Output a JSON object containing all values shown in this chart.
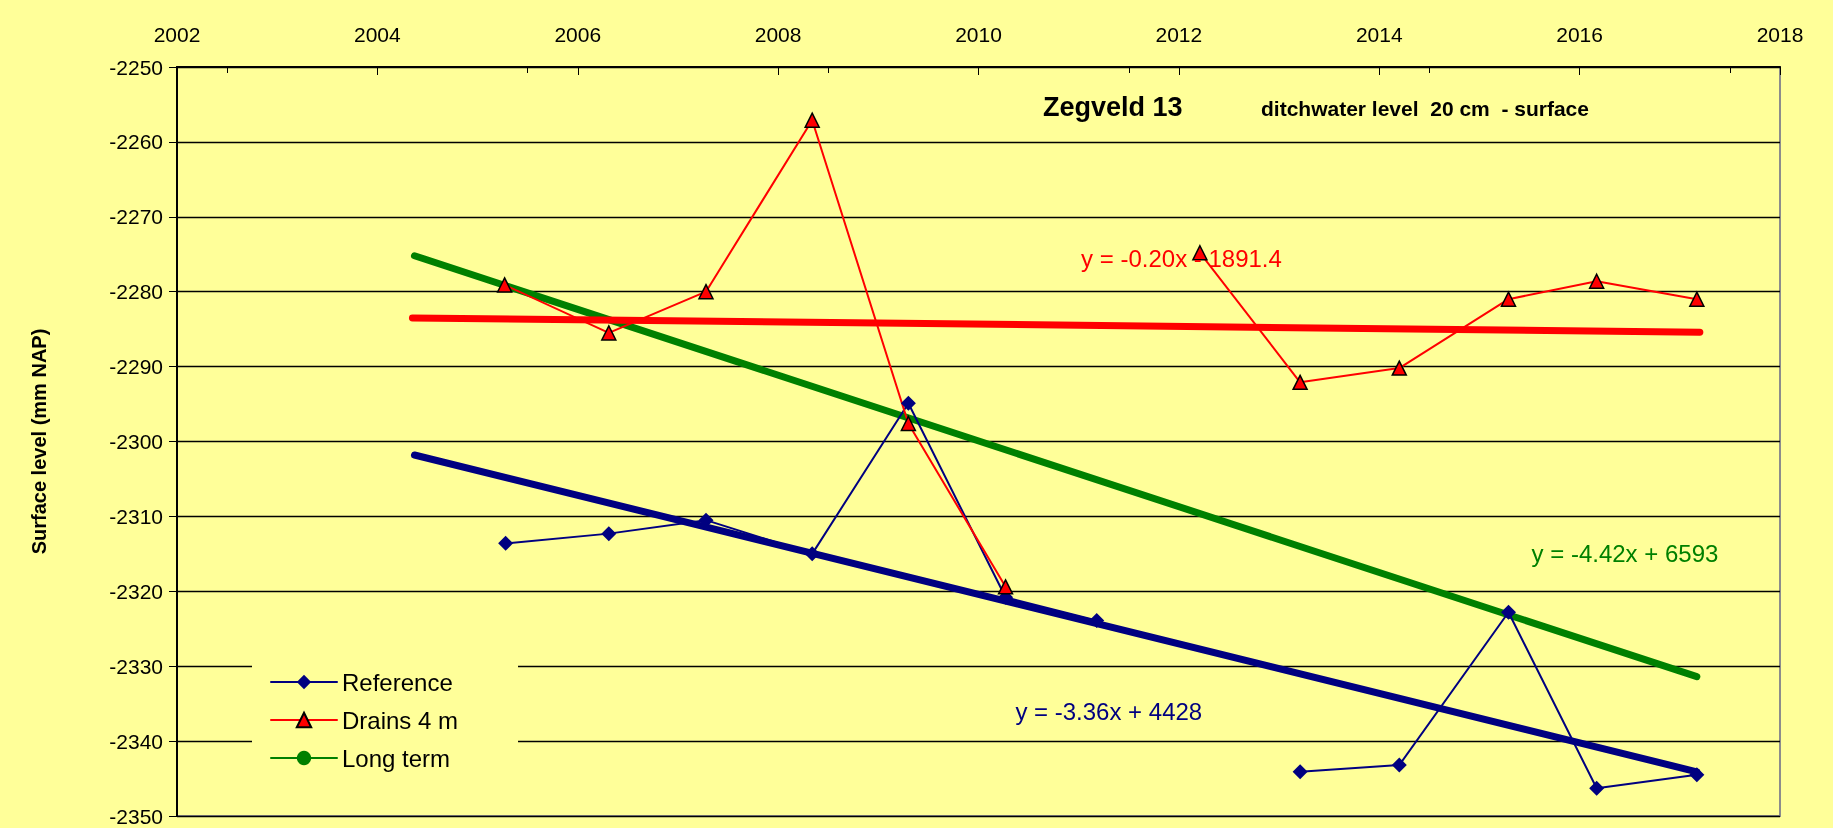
{
  "chart_data": {
    "type": "line",
    "title": "Zegveld 13",
    "subtitle": "ditchwater level  20 cm  - surface",
    "ylabel": "Surface level (mm NAP)",
    "xlim": [
      2002,
      2018
    ],
    "xticks": [
      2002,
      2004,
      2006,
      2008,
      2010,
      2012,
      2014,
      2016,
      2018
    ],
    "ylim": [
      -2350,
      -2250
    ],
    "yticks": [
      -2350,
      -2340,
      -2330,
      -2320,
      -2310,
      -2300,
      -2290,
      -2280,
      -2270,
      -2260,
      -2250
    ],
    "grid": "y",
    "legend": "bottom left",
    "series": [
      {
        "name": "Reference",
        "color": "#000080",
        "marker": "diamond",
        "x": [
          2005.28,
          2006.31,
          2007.28,
          2008.34,
          2009.3,
          2010.27,
          2011.18,
          2012.21,
          2013.21,
          2014.2,
          2015.29,
          2016.17,
          2017.17
        ],
        "values": [
          -2313.6,
          -2312.3,
          -2310.5,
          -2315.0,
          -2294.9,
          -2320.8,
          -2323.9,
          null,
          -2344.1,
          -2343.2,
          -2322.8,
          -2346.3,
          -2344.5
        ]
      },
      {
        "name": "Drains 4 m",
        "color": "#ff0000",
        "marker": "triangle",
        "x": [
          2005.27,
          2006.31,
          2007.28,
          2008.34,
          2009.3,
          2010.27,
          2011.18,
          2012.21,
          2013.21,
          2014.2,
          2015.29,
          2016.17,
          2017.17
        ],
        "values": [
          -2279.1,
          -2285.5,
          -2280.0,
          -2257.1,
          -2297.6,
          -2319.4,
          null,
          -2274.8,
          -2292.1,
          -2290.2,
          -2281.0,
          -2278.6,
          -2281.0
        ]
      },
      {
        "name": "Long term",
        "color": "#008000",
        "marker": "none",
        "x": [
          2004.37,
          2017.17
        ],
        "values": [
          -2275.2,
          -2331.4
        ]
      },
      {
        "color": "#ff0000",
        "marker": "none",
        "x": [
          2004.35,
          2017.2
        ],
        "values": [
          -2283.5,
          -2285.4
        ]
      },
      {
        "color": "#000080",
        "marker": "none",
        "x": [
          2004.37,
          2017.17
        ],
        "values": [
          -2301.8,
          -2344.1
        ]
      }
    ],
    "annotations": [
      "y = -4.42x + 6593",
      "y = -0.20x - 1891.4",
      "y = -3.36x + 4428"
    ]
  }
}
